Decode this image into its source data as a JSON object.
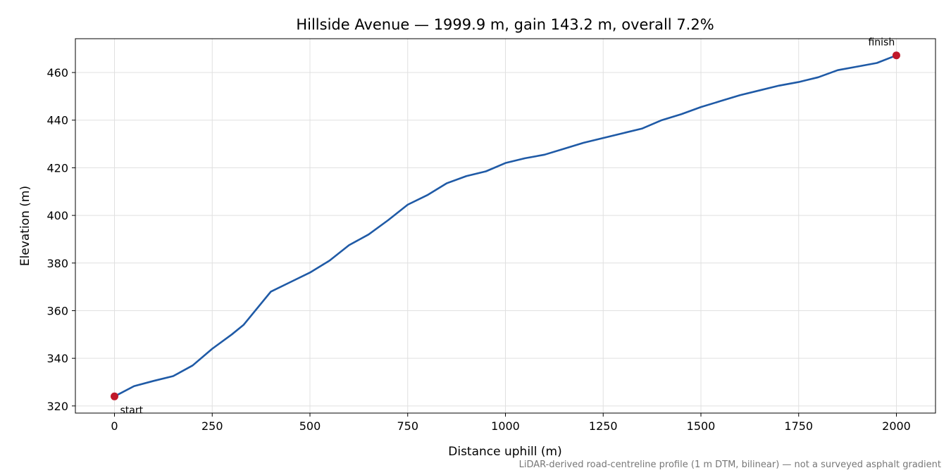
{
  "chart_data": {
    "type": "line",
    "title": "Hillside Avenue — 1999.9 m, gain 143.2 m, overall 7.2%",
    "x_label": "Distance uphill (m)",
    "y_label": "Elevation (m)",
    "footnote": "LiDAR-derived road-centreline profile (1 m DTM, bilinear) — not a surveyed asphalt gradient",
    "xlim": [
      -100,
      2100
    ],
    "ylim": [
      317,
      474.2
    ],
    "xticks": [
      0,
      250,
      500,
      750,
      1000,
      1250,
      1500,
      1750,
      2000
    ],
    "yticks": [
      320,
      340,
      360,
      380,
      400,
      420,
      440,
      460
    ],
    "grid": true,
    "series": [
      {
        "name": "Elevation",
        "color": "#1f5aa6",
        "x": [
          0,
          50,
          100,
          150,
          200,
          250,
          300,
          330,
          400,
          450,
          500,
          550,
          600,
          650,
          700,
          750,
          800,
          850,
          900,
          950,
          1000,
          1050,
          1100,
          1150,
          1200,
          1250,
          1300,
          1350,
          1400,
          1450,
          1500,
          1550,
          1600,
          1650,
          1700,
          1750,
          1800,
          1850,
          1900,
          1950,
          1999.9
        ],
        "values": [
          324,
          328.3,
          330.5,
          332.5,
          337,
          344,
          350,
          354,
          368,
          372,
          376,
          381,
          387.5,
          392,
          398,
          404.5,
          408.5,
          413.5,
          416.5,
          418.5,
          422,
          424,
          425.5,
          428,
          430.5,
          432.5,
          434.5,
          436.5,
          440,
          442.5,
          445.5,
          448,
          450.5,
          452.5,
          454.5,
          456,
          458,
          461,
          462.5,
          464,
          467.2
        ]
      }
    ],
    "endpoints": {
      "color": "#c0182a",
      "x": [
        0,
        1999.9
      ],
      "values": [
        324,
        467.2
      ],
      "labels": [
        "start",
        "finish"
      ]
    }
  }
}
